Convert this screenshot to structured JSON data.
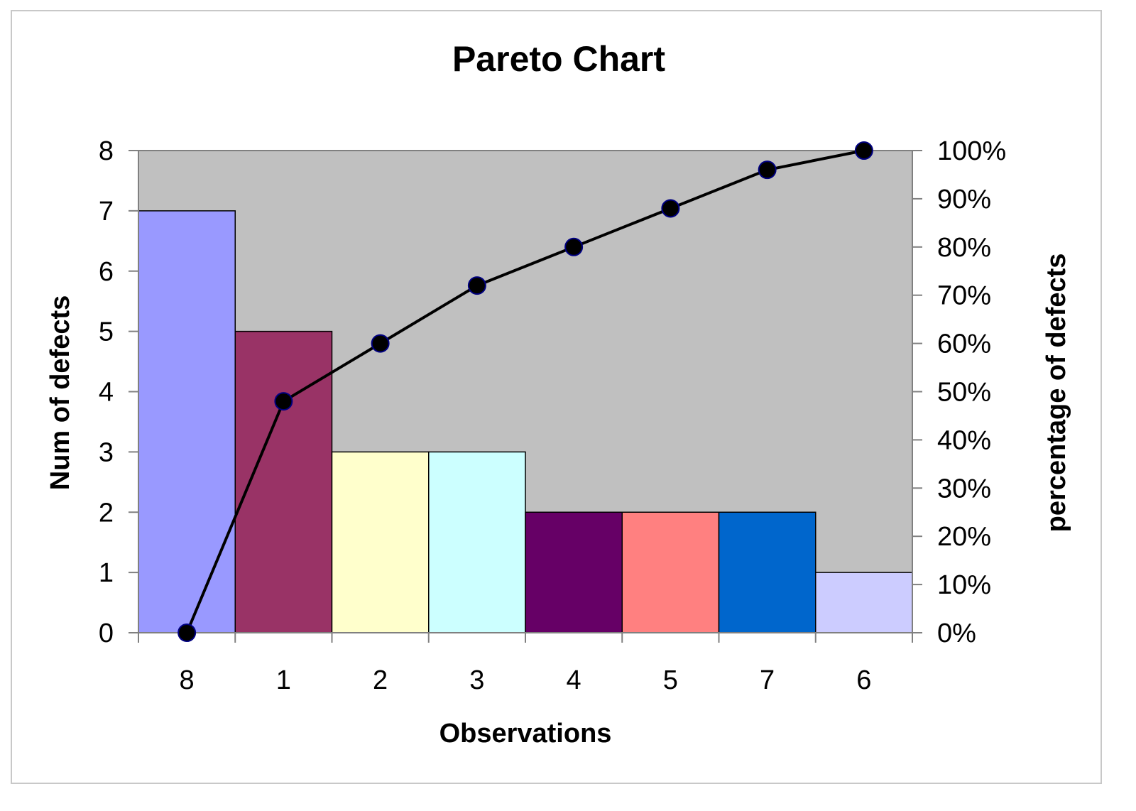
{
  "chart_data": {
    "type": "bar",
    "title": "Pareto Chart",
    "xlabel": "Observations",
    "ylabel": "Num of defects",
    "y2label": "percentage of defects",
    "categories": [
      "8",
      "1",
      "2",
      "3",
      "4",
      "5",
      "7",
      "6"
    ],
    "series": [
      {
        "type": "bar",
        "values": [
          7,
          5,
          3,
          3,
          2,
          2,
          2,
          1
        ],
        "colors": [
          "#9999ff",
          "#993366",
          "#ffffcc",
          "#ccffff",
          "#660066",
          "#ff8080",
          "#0066cc",
          "#ccccff"
        ]
      },
      {
        "type": "line",
        "axis": "right",
        "values": [
          0,
          48,
          60,
          72,
          80,
          88,
          96,
          100
        ],
        "color": "#000000"
      }
    ],
    "ylim": [
      0,
      8
    ],
    "yticks": [
      "0",
      "1",
      "2",
      "3",
      "4",
      "5",
      "6",
      "7",
      "8"
    ],
    "y2lim": [
      0,
      100
    ],
    "y2ticks": [
      "0%",
      "10%",
      "20%",
      "30%",
      "40%",
      "50%",
      "60%",
      "70%",
      "80%",
      "90%",
      "100%"
    ],
    "plot_background": "#c0c0c0",
    "grid": false,
    "legend": "none"
  }
}
